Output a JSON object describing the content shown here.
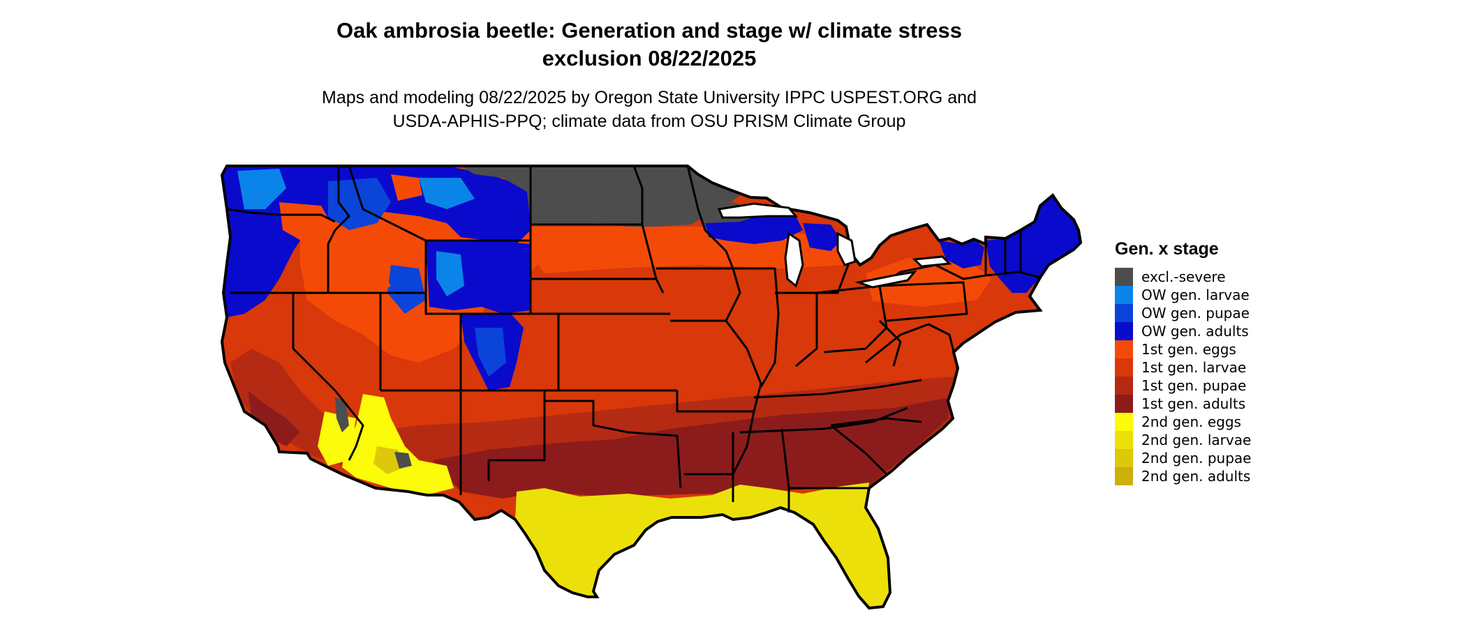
{
  "title_line1": "Oak ambrosia beetle: Generation and stage w/ climate stress",
  "title_line2": "exclusion 08/22/2025",
  "subtitle_line1": "Maps and modeling 08/22/2025 by Oregon State University IPPC USPEST.ORG and",
  "subtitle_line2": "USDA-APHIS-PPQ; climate data from OSU PRISM Climate Group",
  "legend": {
    "title": "Gen. x stage",
    "items": [
      {
        "label": "excl.-severe",
        "color": "#4d4d4d"
      },
      {
        "label": "OW gen. larvae",
        "color": "#0a84e8"
      },
      {
        "label": "OW gen. pupae",
        "color": "#0a44d8"
      },
      {
        "label": "OW gen. adults",
        "color": "#0a0acc"
      },
      {
        "label": "1st gen. eggs",
        "color": "#f44a08"
      },
      {
        "label": "1st gen. larvae",
        "color": "#d8380a"
      },
      {
        "label": "1st gen. pupae",
        "color": "#b52a12"
      },
      {
        "label": "1st gen. adults",
        "color": "#8c1c1c"
      },
      {
        "label": "2nd gen. eggs",
        "color": "#fbfb0a"
      },
      {
        "label": "2nd gen. larvae",
        "color": "#ece00a"
      },
      {
        "label": "2nd gen. pupae",
        "color": "#dec80a"
      },
      {
        "label": "2nd gen. adults",
        "color": "#ccb00a"
      }
    ]
  },
  "map_regions": [
    {
      "name": "northern-plains-excluded",
      "category": "excl.-severe"
    },
    {
      "name": "great-lakes-excluded",
      "category": "excl.-severe"
    },
    {
      "name": "arizona-excluded-patches",
      "category": "excl.-severe"
    },
    {
      "name": "pacific-northwest-ow",
      "category": "OW gen. adults"
    },
    {
      "name": "northern-rockies-ow",
      "category": "OW gen. pupae"
    },
    {
      "name": "wyoming-colorado-ow",
      "category": "OW gen. adults"
    },
    {
      "name": "northeast-ow",
      "category": "OW gen. adults"
    },
    {
      "name": "upper-michigan-ow",
      "category": "OW gen. adults"
    },
    {
      "name": "great-basin-1st-gen",
      "category": "1st gen. eggs"
    },
    {
      "name": "central-states-1st-gen",
      "category": "1st gen. larvae"
    },
    {
      "name": "mid-south-1st-gen",
      "category": "1st gen. pupae"
    },
    {
      "name": "deep-south-1st-gen",
      "category": "1st gen. adults"
    },
    {
      "name": "southern-arizona-2nd-gen",
      "category": "2nd gen. eggs"
    },
    {
      "name": "gulf-coast-2nd-gen",
      "category": "2nd gen. larvae"
    },
    {
      "name": "florida-2nd-gen",
      "category": "2nd gen. larvae"
    }
  ]
}
